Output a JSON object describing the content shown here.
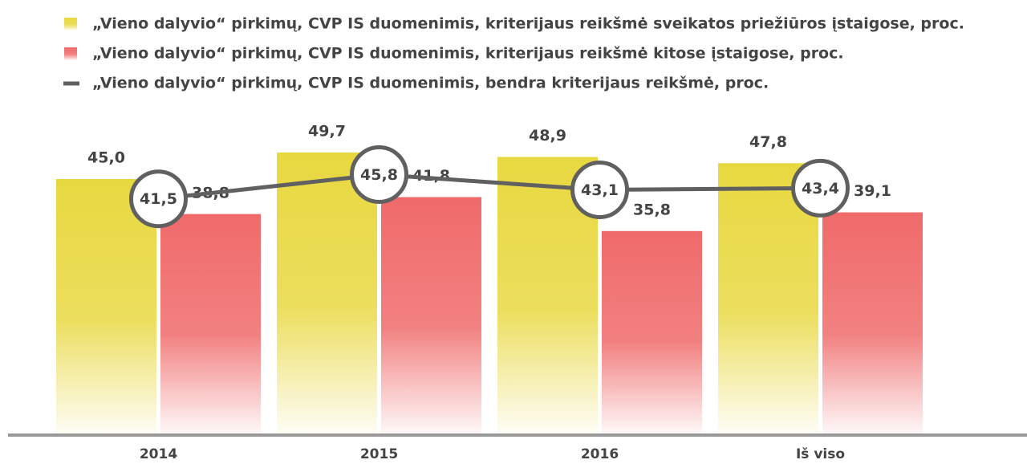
{
  "chart_data": {
    "type": "bar",
    "categories": [
      "2014",
      "2015",
      "2016",
      "Iš viso"
    ],
    "series": [
      {
        "name": "„Vieno dalyvio“ pirkimų, CVP IS duomenimis, kriterijaus reikšmė sveikatos priežiūros įstaigose, proc.",
        "color": "#e8d840",
        "values": [
          45.0,
          49.7,
          48.9,
          47.8
        ],
        "value_labels": [
          "45,0",
          "49,7",
          "48,9",
          "47,8"
        ]
      },
      {
        "name": "„Vieno dalyvio“ pirkimų, CVP IS duomenimis, kriterijaus reikšmė kitose įstaigose, proc.",
        "color": "#f06a6a",
        "values": [
          38.8,
          41.8,
          35.8,
          39.1
        ],
        "value_labels": [
          "38,8",
          "41,8",
          "35,8",
          "39,1"
        ]
      },
      {
        "name": "„Vieno dalyvio“ pirkimų, CVP IS duomenimis, bendra kriterijaus reikšmė, proc.",
        "type": "line",
        "color": "#606060",
        "values": [
          41.5,
          45.8,
          43.1,
          43.4
        ],
        "value_labels": [
          "41,5",
          "45,8",
          "43,1",
          "43,4"
        ]
      }
    ]
  }
}
